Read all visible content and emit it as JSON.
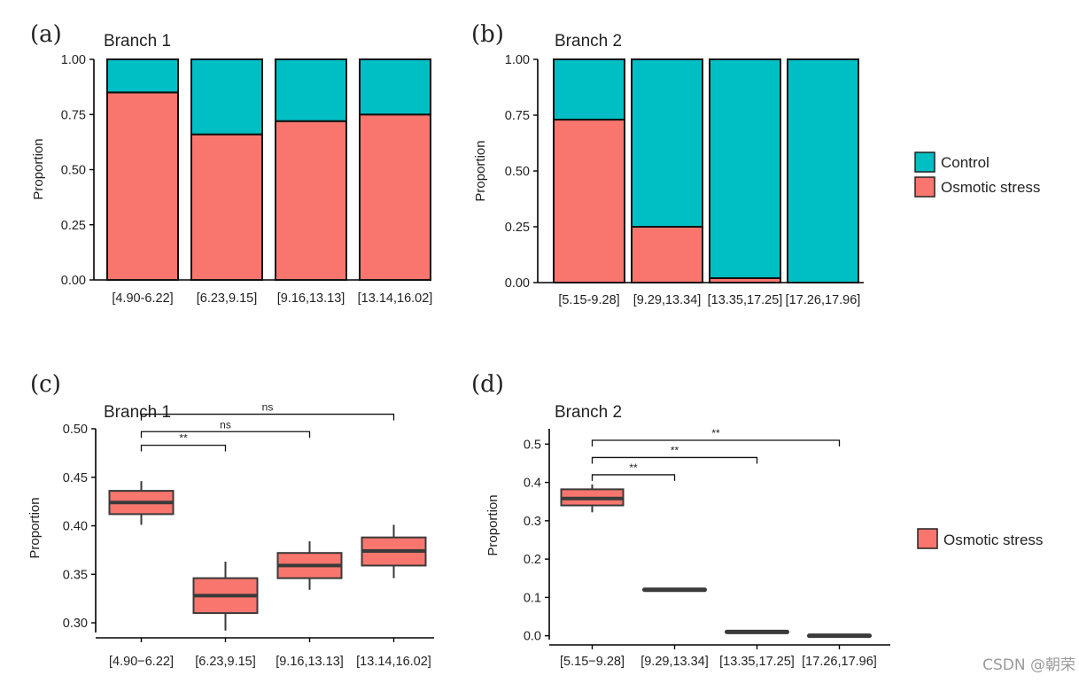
{
  "colors": {
    "control": "#00BFC4",
    "osmotic": "#F8766D",
    "median": "#3a3a3a",
    "axis": "#000000"
  },
  "watermark": "CSDN @朝荣",
  "legend_top": {
    "items": [
      {
        "label": "Control",
        "color": "#00BFC4"
      },
      {
        "label": "Osmotic stress",
        "color": "#F8766D"
      }
    ]
  },
  "legend_bottom": {
    "items": [
      {
        "label": "Osmotic stress",
        "color": "#F8766D"
      }
    ]
  },
  "chart_data": [
    {
      "panel": "(a)",
      "type": "bar",
      "stacked": true,
      "title": "Branch 1",
      "ylabel": "Proportion",
      "ylim": [
        0,
        1
      ],
      "yticks": [
        "0.00",
        "0.25",
        "0.50",
        "0.75",
        "1.00"
      ],
      "categories": [
        "[4.90-6.22]",
        "[6.23,9.15]",
        "[9.16,13.13]",
        "[13.14,16.02]"
      ],
      "series": [
        {
          "name": "Osmotic stress",
          "values": [
            0.85,
            0.66,
            0.72,
            0.75
          ]
        },
        {
          "name": "Control",
          "values": [
            0.15,
            0.34,
            0.28,
            0.25
          ]
        }
      ]
    },
    {
      "panel": "(b)",
      "type": "bar",
      "stacked": true,
      "title": "Branch 2",
      "ylabel": "Proportion",
      "ylim": [
        0,
        1
      ],
      "yticks": [
        "0.00",
        "0.25",
        "0.50",
        "0.75",
        "1.00"
      ],
      "categories": [
        "[5.15-9.28]",
        "[9.29,13.34]",
        "[13.35,17.25]",
        "[17.26,17.96]"
      ],
      "series": [
        {
          "name": "Osmotic stress",
          "values": [
            0.73,
            0.25,
            0.02,
            0.0
          ]
        },
        {
          "name": "Control",
          "values": [
            0.27,
            0.75,
            0.98,
            1.0
          ]
        }
      ]
    },
    {
      "panel": "(c)",
      "type": "box",
      "title": "Branch 1",
      "ylabel": "Proportion",
      "ylim": [
        0.29,
        0.5
      ],
      "yticks": [
        0.3,
        0.35,
        0.4,
        0.45,
        0.5
      ],
      "ytick_labels": [
        "0.30",
        "0.35",
        "0.40",
        "0.45",
        "0.50"
      ],
      "categories": [
        "[4.90−6.22]",
        "[6.23,9.15]",
        "[9.16,13.13]",
        "[13.14,16.02]"
      ],
      "series": [
        {
          "name": "Osmotic stress",
          "boxes": [
            {
              "min": 0.401,
              "q1": 0.412,
              "median": 0.424,
              "q3": 0.436,
              "max": 0.446
            },
            {
              "min": 0.292,
              "q1": 0.31,
              "median": 0.328,
              "q3": 0.346,
              "max": 0.363
            },
            {
              "min": 0.334,
              "q1": 0.346,
              "median": 0.359,
              "q3": 0.372,
              "max": 0.384
            },
            {
              "min": 0.346,
              "q1": 0.359,
              "median": 0.374,
              "q3": 0.388,
              "max": 0.401
            }
          ]
        }
      ],
      "comparisons": [
        {
          "from": 0,
          "to": 1,
          "label": "**",
          "y": 0.483
        },
        {
          "from": 0,
          "to": 2,
          "label": "ns",
          "y": 0.497
        },
        {
          "from": 0,
          "to": 3,
          "label": "ns",
          "y": 0.515
        }
      ]
    },
    {
      "panel": "(d)",
      "type": "box",
      "title": "Branch 2",
      "ylabel": "Proportion",
      "ylim": [
        -0.01,
        0.54
      ],
      "yticks": [
        0.0,
        0.1,
        0.2,
        0.3,
        0.4,
        0.5
      ],
      "ytick_labels": [
        "0.0",
        "0.1",
        "0.2",
        "0.3",
        "0.4",
        "0.5"
      ],
      "categories": [
        "[5.15−9.28]",
        "[9.29,13.34]",
        "[13.35,17.25]",
        "[17.26,17.96]"
      ],
      "series": [
        {
          "name": "Osmotic stress",
          "boxes": [
            {
              "min": 0.322,
              "q1": 0.34,
              "median": 0.358,
              "q3": 0.382,
              "max": 0.395
            },
            {
              "min": 0.12,
              "q1": 0.12,
              "median": 0.12,
              "q3": 0.12,
              "max": 0.12
            },
            {
              "min": 0.01,
              "q1": 0.01,
              "median": 0.01,
              "q3": 0.01,
              "max": 0.01
            },
            {
              "min": 0.0,
              "q1": 0.0,
              "median": 0.0,
              "q3": 0.0,
              "max": 0.0
            }
          ]
        }
      ],
      "comparisons": [
        {
          "from": 0,
          "to": 1,
          "label": "**",
          "y": 0.42
        },
        {
          "from": 0,
          "to": 2,
          "label": "**",
          "y": 0.465
        },
        {
          "from": 0,
          "to": 3,
          "label": "**",
          "y": 0.51
        }
      ]
    }
  ]
}
